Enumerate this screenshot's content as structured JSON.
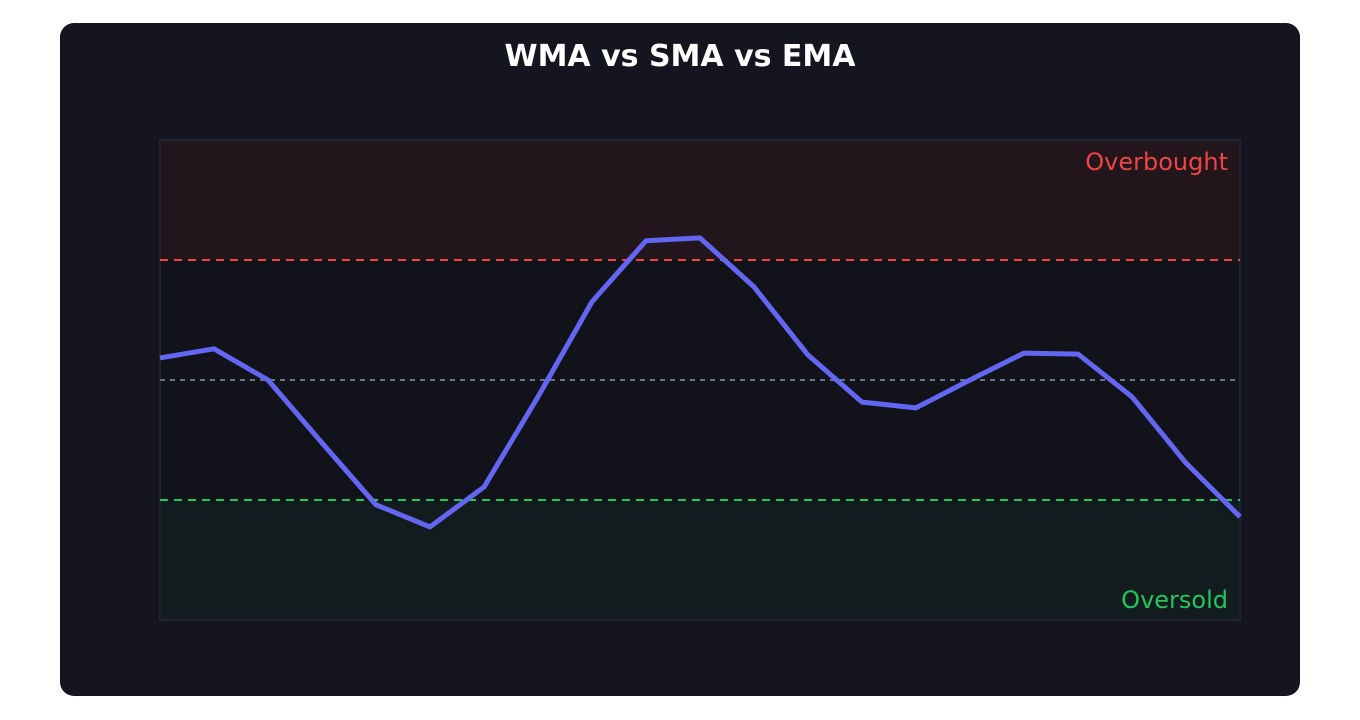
{
  "chart_data": {
    "type": "line",
    "title": "WMA vs SMA vs EMA",
    "values": [
      54.6,
      56.5,
      50,
      36.9,
      24,
      19.4,
      27.7,
      46.5,
      66.3,
      79,
      79.6,
      69.4,
      55.2,
      45.4,
      44.2,
      50,
      55.6,
      55.4,
      46.5,
      32.7,
      21.5
    ],
    "color": "#6366f1",
    "ylim": [
      0,
      100
    ],
    "overbought": {
      "value": 75,
      "label": "Overbought",
      "color": "#ef4444"
    },
    "oversold": {
      "value": 25,
      "label": "Oversold",
      "color": "#22c55e"
    },
    "midline": {
      "value": 50,
      "color": "#64748b"
    }
  }
}
